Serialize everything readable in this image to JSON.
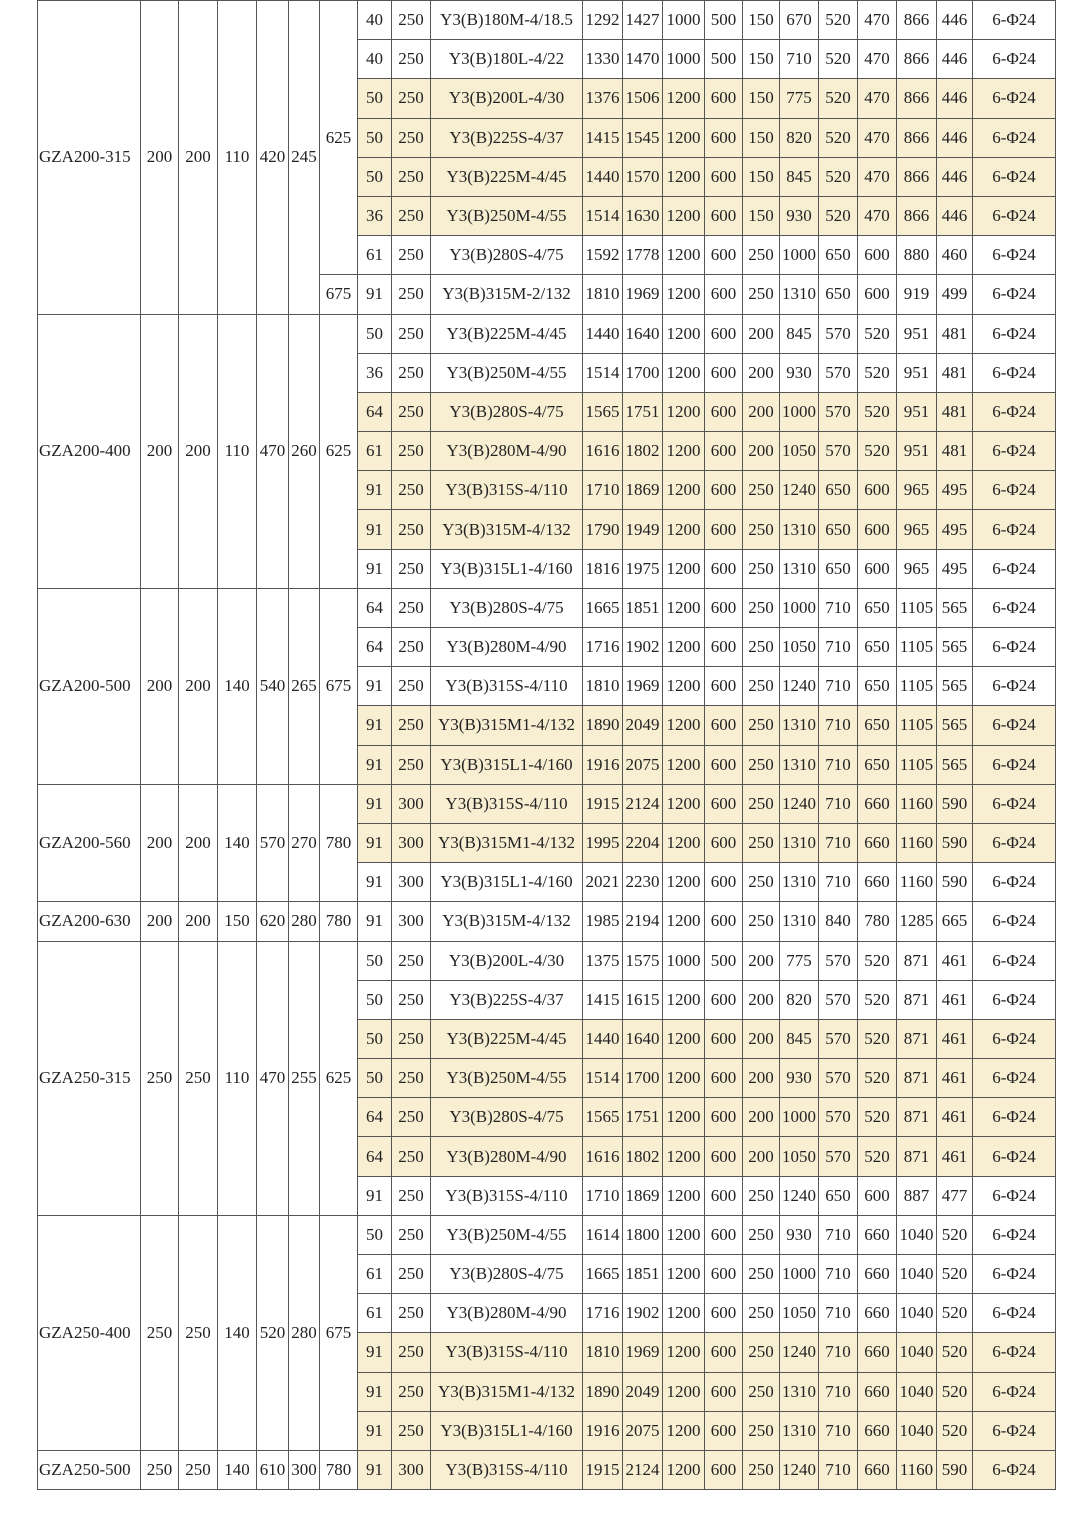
{
  "highlight_color": "#f8efd3",
  "groups": [
    {
      "model": "GZA200-315",
      "cols": [
        "200",
        "200",
        "110",
        "420",
        "245"
      ],
      "subgroups": [
        {
          "flange": "625",
          "rows": [
            {
              "cells": [
                "40",
                "250",
                "Y3(B)180M-4/18.5",
                "1292",
                "1427",
                "1000",
                "500",
                "150",
                "670",
                "520",
                "470",
                "866",
                "446",
                "6-Φ24"
              ],
              "highlight": false
            },
            {
              "cells": [
                "40",
                "250",
                "Y3(B)180L-4/22",
                "1330",
                "1470",
                "1000",
                "500",
                "150",
                "710",
                "520",
                "470",
                "866",
                "446",
                "6-Φ24"
              ],
              "highlight": false
            },
            {
              "cells": [
                "50",
                "250",
                "Y3(B)200L-4/30",
                "1376",
                "1506",
                "1200",
                "600",
                "150",
                "775",
                "520",
                "470",
                "866",
                "446",
                "6-Φ24"
              ],
              "highlight": true
            },
            {
              "cells": [
                "50",
                "250",
                "Y3(B)225S-4/37",
                "1415",
                "1545",
                "1200",
                "600",
                "150",
                "820",
                "520",
                "470",
                "866",
                "446",
                "6-Φ24"
              ],
              "highlight": true
            },
            {
              "cells": [
                "50",
                "250",
                "Y3(B)225M-4/45",
                "1440",
                "1570",
                "1200",
                "600",
                "150",
                "845",
                "520",
                "470",
                "866",
                "446",
                "6-Φ24"
              ],
              "highlight": true
            },
            {
              "cells": [
                "36",
                "250",
                "Y3(B)250M-4/55",
                "1514",
                "1630",
                "1200",
                "600",
                "150",
                "930",
                "520",
                "470",
                "866",
                "446",
                "6-Φ24"
              ],
              "highlight": true
            },
            {
              "cells": [
                "61",
                "250",
                "Y3(B)280S-4/75",
                "1592",
                "1778",
                "1200",
                "600",
                "250",
                "1000",
                "650",
                "600",
                "880",
                "460",
                "6-Φ24"
              ],
              "highlight": false
            }
          ]
        },
        {
          "flange": "675",
          "rows": [
            {
              "cells": [
                "91",
                "250",
                "Y3(B)315M-2/132",
                "1810",
                "1969",
                "1200",
                "600",
                "250",
                "1310",
                "650",
                "600",
                "919",
                "499",
                "6-Φ24"
              ],
              "highlight": false
            }
          ]
        }
      ]
    },
    {
      "model": "GZA200-400",
      "cols": [
        "200",
        "200",
        "110",
        "470",
        "260"
      ],
      "subgroups": [
        {
          "flange": "625",
          "rows": [
            {
              "cells": [
                "50",
                "250",
                "Y3(B)225M-4/45",
                "1440",
                "1640",
                "1200",
                "600",
                "200",
                "845",
                "570",
                "520",
                "951",
                "481",
                "6-Φ24"
              ],
              "highlight": false
            },
            {
              "cells": [
                "36",
                "250",
                "Y3(B)250M-4/55",
                "1514",
                "1700",
                "1200",
                "600",
                "200",
                "930",
                "570",
                "520",
                "951",
                "481",
                "6-Φ24"
              ],
              "highlight": false
            },
            {
              "cells": [
                "64",
                "250",
                "Y3(B)280S-4/75",
                "1565",
                "1751",
                "1200",
                "600",
                "200",
                "1000",
                "570",
                "520",
                "951",
                "481",
                "6-Φ24"
              ],
              "highlight": true
            },
            {
              "cells": [
                "61",
                "250",
                "Y3(B)280M-4/90",
                "1616",
                "1802",
                "1200",
                "600",
                "200",
                "1050",
                "570",
                "520",
                "951",
                "481",
                "6-Φ24"
              ],
              "highlight": true
            },
            {
              "cells": [
                "91",
                "250",
                "Y3(B)315S-4/110",
                "1710",
                "1869",
                "1200",
                "600",
                "250",
                "1240",
                "650",
                "600",
                "965",
                "495",
                "6-Φ24"
              ],
              "highlight": true
            },
            {
              "cells": [
                "91",
                "250",
                "Y3(B)315M-4/132",
                "1790",
                "1949",
                "1200",
                "600",
                "250",
                "1310",
                "650",
                "600",
                "965",
                "495",
                "6-Φ24"
              ],
              "highlight": true
            },
            {
              "cells": [
                "91",
                "250",
                "Y3(B)315L1-4/160",
                "1816",
                "1975",
                "1200",
                "600",
                "250",
                "1310",
                "650",
                "600",
                "965",
                "495",
                "6-Φ24"
              ],
              "highlight": false
            }
          ]
        }
      ]
    },
    {
      "model": "GZA200-500",
      "cols": [
        "200",
        "200",
        "140",
        "540",
        "265"
      ],
      "subgroups": [
        {
          "flange": "675",
          "rows": [
            {
              "cells": [
                "64",
                "250",
                "Y3(B)280S-4/75",
                "1665",
                "1851",
                "1200",
                "600",
                "250",
                "1000",
                "710",
                "650",
                "1105",
                "565",
                "6-Φ24"
              ],
              "highlight": false
            },
            {
              "cells": [
                "64",
                "250",
                "Y3(B)280M-4/90",
                "1716",
                "1902",
                "1200",
                "600",
                "250",
                "1050",
                "710",
                "650",
                "1105",
                "565",
                "6-Φ24"
              ],
              "highlight": false
            },
            {
              "cells": [
                "91",
                "250",
                "Y3(B)315S-4/110",
                "1810",
                "1969",
                "1200",
                "600",
                "250",
                "1240",
                "710",
                "650",
                "1105",
                "565",
                "6-Φ24"
              ],
              "highlight": false
            },
            {
              "cells": [
                "91",
                "250",
                "Y3(B)315M1-4/132",
                "1890",
                "2049",
                "1200",
                "600",
                "250",
                "1310",
                "710",
                "650",
                "1105",
                "565",
                "6-Φ24"
              ],
              "highlight": true
            },
            {
              "cells": [
                "91",
                "250",
                "Y3(B)315L1-4/160",
                "1916",
                "2075",
                "1200",
                "600",
                "250",
                "1310",
                "710",
                "650",
                "1105",
                "565",
                "6-Φ24"
              ],
              "highlight": true
            }
          ]
        }
      ]
    },
    {
      "model": "GZA200-560",
      "cols": [
        "200",
        "200",
        "140",
        "570",
        "270"
      ],
      "subgroups": [
        {
          "flange": "780",
          "rows": [
            {
              "cells": [
                "91",
                "300",
                "Y3(B)315S-4/110",
                "1915",
                "2124",
                "1200",
                "600",
                "250",
                "1240",
                "710",
                "660",
                "1160",
                "590",
                "6-Φ24"
              ],
              "highlight": true
            },
            {
              "cells": [
                "91",
                "300",
                "Y3(B)315M1-4/132",
                "1995",
                "2204",
                "1200",
                "600",
                "250",
                "1310",
                "710",
                "660",
                "1160",
                "590",
                "6-Φ24"
              ],
              "highlight": true
            },
            {
              "cells": [
                "91",
                "300",
                "Y3(B)315L1-4/160",
                "2021",
                "2230",
                "1200",
                "600",
                "250",
                "1310",
                "710",
                "660",
                "1160",
                "590",
                "6-Φ24"
              ],
              "highlight": false
            }
          ]
        }
      ]
    },
    {
      "model": "GZA200-630",
      "cols": [
        "200",
        "200",
        "150",
        "620",
        "280"
      ],
      "subgroups": [
        {
          "flange": "780",
          "rows": [
            {
              "cells": [
                "91",
                "300",
                "Y3(B)315M-4/132",
                "1985",
                "2194",
                "1200",
                "600",
                "250",
                "1310",
                "840",
                "780",
                "1285",
                "665",
                "6-Φ24"
              ],
              "highlight": false
            }
          ]
        }
      ]
    },
    {
      "model": "GZA250-315",
      "cols": [
        "250",
        "250",
        "110",
        "470",
        "255"
      ],
      "subgroups": [
        {
          "flange": "625",
          "rows": [
            {
              "cells": [
                "50",
                "250",
                "Y3(B)200L-4/30",
                "1375",
                "1575",
                "1000",
                "500",
                "200",
                "775",
                "570",
                "520",
                "871",
                "461",
                "6-Φ24"
              ],
              "highlight": false
            },
            {
              "cells": [
                "50",
                "250",
                "Y3(B)225S-4/37",
                "1415",
                "1615",
                "1200",
                "600",
                "200",
                "820",
                "570",
                "520",
                "871",
                "461",
                "6-Φ24"
              ],
              "highlight": false
            },
            {
              "cells": [
                "50",
                "250",
                "Y3(B)225M-4/45",
                "1440",
                "1640",
                "1200",
                "600",
                "200",
                "845",
                "570",
                "520",
                "871",
                "461",
                "6-Φ24"
              ],
              "highlight": true
            },
            {
              "cells": [
                "50",
                "250",
                "Y3(B)250M-4/55",
                "1514",
                "1700",
                "1200",
                "600",
                "200",
                "930",
                "570",
                "520",
                "871",
                "461",
                "6-Φ24"
              ],
              "highlight": true
            },
            {
              "cells": [
                "64",
                "250",
                "Y3(B)280S-4/75",
                "1565",
                "1751",
                "1200",
                "600",
                "200",
                "1000",
                "570",
                "520",
                "871",
                "461",
                "6-Φ24"
              ],
              "highlight": true
            },
            {
              "cells": [
                "64",
                "250",
                "Y3(B)280M-4/90",
                "1616",
                "1802",
                "1200",
                "600",
                "200",
                "1050",
                "570",
                "520",
                "871",
                "461",
                "6-Φ24"
              ],
              "highlight": true
            },
            {
              "cells": [
                "91",
                "250",
                "Y3(B)315S-4/110",
                "1710",
                "1869",
                "1200",
                "600",
                "250",
                "1240",
                "650",
                "600",
                "887",
                "477",
                "6-Φ24"
              ],
              "highlight": false
            }
          ]
        }
      ]
    },
    {
      "model": "GZA250-400",
      "cols": [
        "250",
        "250",
        "140",
        "520",
        "280"
      ],
      "subgroups": [
        {
          "flange": "675",
          "rows": [
            {
              "cells": [
                "50",
                "250",
                "Y3(B)250M-4/55",
                "1614",
                "1800",
                "1200",
                "600",
                "250",
                "930",
                "710",
                "660",
                "1040",
                "520",
                "6-Φ24"
              ],
              "highlight": false
            },
            {
              "cells": [
                "61",
                "250",
                "Y3(B)280S-4/75",
                "1665",
                "1851",
                "1200",
                "600",
                "250",
                "1000",
                "710",
                "660",
                "1040",
                "520",
                "6-Φ24"
              ],
              "highlight": false
            },
            {
              "cells": [
                "61",
                "250",
                "Y3(B)280M-4/90",
                "1716",
                "1902",
                "1200",
                "600",
                "250",
                "1050",
                "710",
                "660",
                "1040",
                "520",
                "6-Φ24"
              ],
              "highlight": false
            },
            {
              "cells": [
                "91",
                "250",
                "Y3(B)315S-4/110",
                "1810",
                "1969",
                "1200",
                "600",
                "250",
                "1240",
                "710",
                "660",
                "1040",
                "520",
                "6-Φ24"
              ],
              "highlight": true
            },
            {
              "cells": [
                "91",
                "250",
                "Y3(B)315M1-4/132",
                "1890",
                "2049",
                "1200",
                "600",
                "250",
                "1310",
                "710",
                "660",
                "1040",
                "520",
                "6-Φ24"
              ],
              "highlight": true
            },
            {
              "cells": [
                "91",
                "250",
                "Y3(B)315L1-4/160",
                "1916",
                "2075",
                "1200",
                "600",
                "250",
                "1310",
                "710",
                "660",
                "1040",
                "520",
                "6-Φ24"
              ],
              "highlight": true
            }
          ]
        }
      ]
    },
    {
      "model": "GZA250-500",
      "cols": [
        "250",
        "250",
        "140",
        "610",
        "300"
      ],
      "subgroups": [
        {
          "flange": "780",
          "rows": [
            {
              "cells": [
                "91",
                "300",
                "Y3(B)315S-4/110",
                "1915",
                "2124",
                "1200",
                "600",
                "250",
                "1240",
                "710",
                "660",
                "1160",
                "590",
                "6-Φ24"
              ],
              "highlight": true
            }
          ]
        }
      ]
    }
  ]
}
